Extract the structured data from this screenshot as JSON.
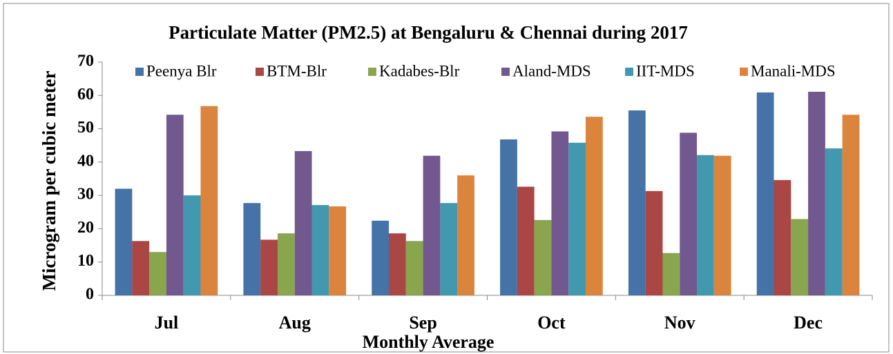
{
  "chart_data": {
    "type": "bar",
    "title": "Particulate Matter (PM2.5) at Bengaluru & Chennai during 2017",
    "x_label": "Monthly Average",
    "y_label": "Microgram per cubic meter",
    "categories": [
      "Jul",
      "Aug",
      "Sep",
      "Oct",
      "Nov",
      "Dec"
    ],
    "series": [
      {
        "name": "Peenya Blr",
        "color": "#4572a7",
        "values": [
          32,
          27.7,
          22.4,
          46.8,
          55.5,
          60.9
        ]
      },
      {
        "name": "BTM-Blr",
        "color": "#aa4643",
        "values": [
          16.3,
          16.7,
          18.6,
          32.6,
          31.3,
          34.6
        ]
      },
      {
        "name": "Kadabes-Blr",
        "color": "#89a54e",
        "values": [
          13,
          18.6,
          16.3,
          22.6,
          12.7,
          22.9
        ]
      },
      {
        "name": "Aland-MDS",
        "color": "#71588f",
        "values": [
          54.2,
          43.3,
          41.9,
          49.2,
          48.8,
          61.1
        ]
      },
      {
        "name": "IIT-MDS",
        "color": "#4198af",
        "values": [
          30,
          27.1,
          27.7,
          45.8,
          42.1,
          44.1
        ]
      },
      {
        "name": "Manali-MDS",
        "color": "#db843d",
        "values": [
          56.8,
          26.7,
          36,
          53.6,
          41.9,
          54.2
        ]
      }
    ],
    "ylim": [
      0,
      70
    ],
    "yticks": [
      0,
      10,
      20,
      30,
      40,
      50,
      60,
      70
    ],
    "grid": false,
    "legend": "top"
  }
}
